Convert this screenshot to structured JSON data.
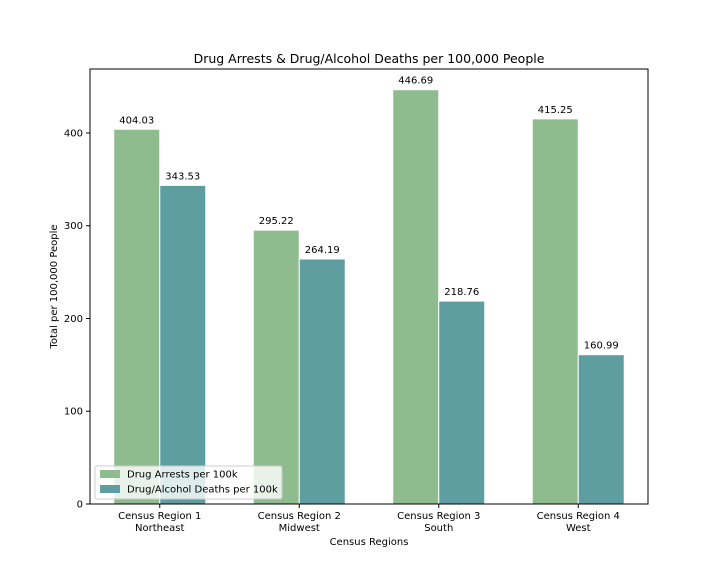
{
  "chart_data": {
    "type": "bar",
    "title": "Drug Arrests & Drug/Alcohol Deaths per 100,000 People",
    "xlabel": "Census Regions",
    "ylabel": "Total per 100,000 People",
    "categories": [
      [
        "Census Region 1",
        "Northeast"
      ],
      [
        "Census Region 2",
        "Midwest"
      ],
      [
        "Census Region 3",
        "South"
      ],
      [
        "Census Region 4",
        "West"
      ]
    ],
    "series": [
      {
        "name": "Drug Arrests per 100k",
        "color": "#8fbc8f",
        "values": [
          404.03,
          295.22,
          446.69,
          415.25
        ],
        "labels": [
          "404.03",
          "295.22",
          "446.69",
          "415.25"
        ]
      },
      {
        "name": "Drug/Alcohol Deaths per 100k",
        "color": "#5f9ea0",
        "values": [
          343.53,
          264.19,
          218.76,
          160.99
        ],
        "labels": [
          "343.53",
          "264.19",
          "218.76",
          "160.99"
        ]
      }
    ],
    "ylim": [
      0,
      469
    ],
    "yticks": [
      0,
      100,
      200,
      300,
      400
    ],
    "grid": false,
    "legend": "lower-left"
  }
}
